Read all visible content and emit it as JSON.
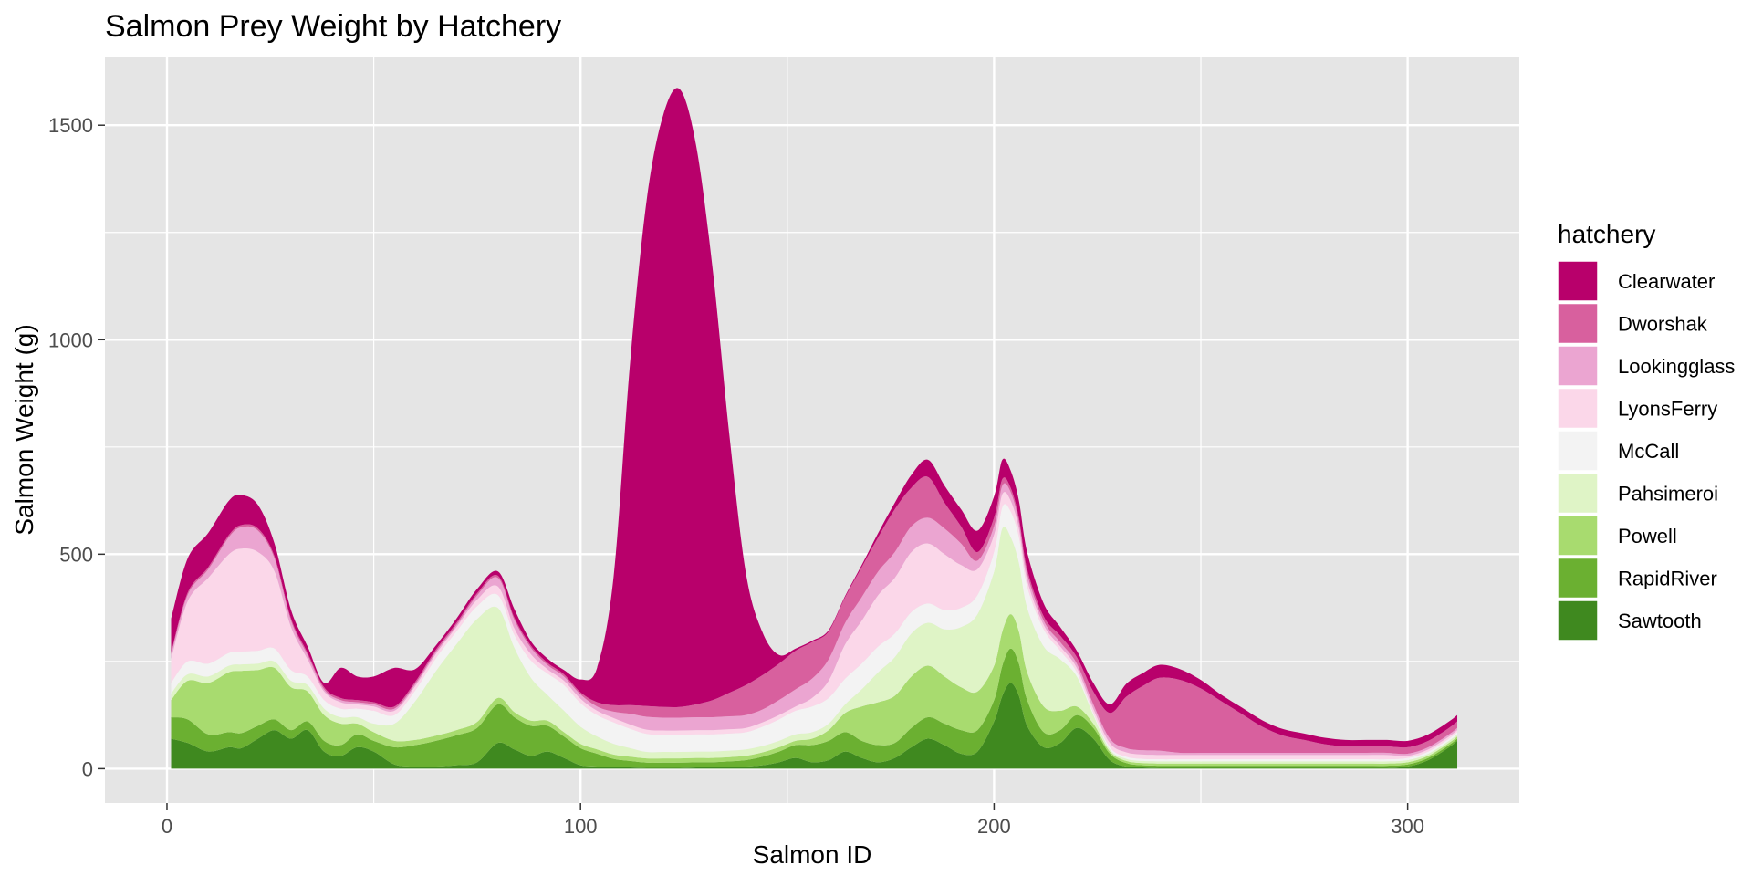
{
  "chart_data": {
    "type": "area",
    "stacked": true,
    "smoothed": true,
    "title": "Salmon Prey Weight by Hatchery",
    "xlabel": "Salmon ID",
    "ylabel": "Salmon Weight (g)",
    "xlim": [
      -15,
      327
    ],
    "ylim": [
      -80,
      1660
    ],
    "x_ticks": [
      0,
      100,
      200,
      300
    ],
    "y_ticks": [
      0,
      500,
      1000,
      1500
    ],
    "grid": true,
    "panel_background": "#e5e5e5",
    "grid_color": "#ffffff",
    "legend": {
      "title": "hatchery",
      "position": "right"
    },
    "x": [
      1,
      5,
      10,
      15,
      18,
      22,
      26,
      30,
      34,
      38,
      42,
      46,
      50,
      55,
      60,
      65,
      70,
      75,
      80,
      84,
      88,
      92,
      96,
      100,
      104,
      108,
      112,
      116,
      120,
      124,
      128,
      132,
      136,
      140,
      144,
      148,
      152,
      156,
      160,
      164,
      168,
      172,
      176,
      180,
      184,
      188,
      192,
      196,
      200,
      202,
      204,
      206,
      208,
      212,
      216,
      220,
      224,
      228,
      232,
      236,
      240,
      245,
      250,
      255,
      260,
      265,
      270,
      275,
      280,
      285,
      290,
      295,
      300,
      305,
      310,
      312
    ],
    "series": [
      {
        "name": "Sawtooth",
        "color": "#3f891f",
        "values": [
          70,
          60,
          40,
          50,
          48,
          70,
          90,
          70,
          90,
          40,
          30,
          50,
          40,
          10,
          5,
          5,
          8,
          15,
          60,
          45,
          30,
          40,
          25,
          8,
          5,
          3,
          3,
          2,
          2,
          2,
          3,
          3,
          5,
          5,
          8,
          15,
          25,
          15,
          20,
          40,
          25,
          15,
          25,
          50,
          70,
          55,
          35,
          40,
          110,
          170,
          200,
          170,
          100,
          50,
          60,
          95,
          70,
          20,
          5,
          3,
          2,
          2,
          2,
          2,
          2,
          2,
          2,
          2,
          2,
          2,
          2,
          2,
          5,
          20,
          50,
          65
        ]
      },
      {
        "name": "RapidRiver",
        "color": "#6bb031",
        "values": [
          50,
          55,
          40,
          35,
          35,
          30,
          25,
          20,
          20,
          25,
          25,
          30,
          25,
          40,
          50,
          60,
          70,
          80,
          90,
          75,
          70,
          60,
          50,
          40,
          30,
          20,
          15,
          12,
          12,
          12,
          12,
          12,
          12,
          15,
          20,
          25,
          30,
          40,
          45,
          45,
          40,
          40,
          35,
          45,
          50,
          50,
          55,
          50,
          50,
          70,
          80,
          75,
          60,
          35,
          30,
          30,
          25,
          15,
          8,
          5,
          5,
          5,
          5,
          5,
          5,
          5,
          5,
          5,
          5,
          5,
          5,
          5,
          5,
          5,
          5,
          5
        ]
      },
      {
        "name": "Powell",
        "color": "#a8db6f",
        "values": [
          40,
          90,
          120,
          140,
          145,
          130,
          120,
          100,
          70,
          60,
          50,
          25,
          20,
          15,
          12,
          12,
          12,
          14,
          15,
          12,
          12,
          12,
          10,
          10,
          10,
          10,
          10,
          10,
          10,
          10,
          10,
          10,
          10,
          10,
          10,
          10,
          10,
          15,
          25,
          45,
          80,
          100,
          110,
          120,
          120,
          110,
          100,
          90,
          80,
          80,
          80,
          75,
          65,
          60,
          45,
          20,
          10,
          5,
          5,
          5,
          5,
          5,
          5,
          5,
          5,
          5,
          5,
          5,
          5,
          5,
          5,
          5,
          5,
          5,
          5,
          5
        ]
      },
      {
        "name": "Pahsimeroi",
        "color": "#dff4c6",
        "values": [
          15,
          15,
          15,
          15,
          15,
          15,
          15,
          15,
          15,
          15,
          15,
          15,
          20,
          40,
          90,
          150,
          200,
          240,
          210,
          150,
          100,
          60,
          50,
          40,
          30,
          25,
          20,
          15,
          15,
          15,
          15,
          15,
          15,
          15,
          15,
          15,
          15,
          15,
          15,
          20,
          40,
          70,
          90,
          100,
          100,
          110,
          140,
          180,
          220,
          240,
          180,
          160,
          150,
          140,
          120,
          70,
          20,
          5,
          5,
          5,
          5,
          5,
          5,
          5,
          5,
          5,
          5,
          5,
          5,
          5,
          5,
          5,
          5,
          5,
          5,
          5
        ]
      },
      {
        "name": "McCall",
        "color": "#f3f3f3",
        "values": [
          25,
          30,
          30,
          30,
          30,
          30,
          30,
          25,
          20,
          20,
          20,
          20,
          30,
          20,
          25,
          30,
          30,
          30,
          30,
          30,
          40,
          50,
          60,
          55,
          50,
          50,
          45,
          42,
          40,
          40,
          40,
          40,
          40,
          40,
          45,
          50,
          55,
          60,
          60,
          60,
          60,
          60,
          55,
          50,
          45,
          45,
          45,
          45,
          45,
          50,
          60,
          60,
          50,
          40,
          20,
          10,
          5,
          5,
          5,
          5,
          5,
          5,
          5,
          5,
          5,
          5,
          5,
          5,
          5,
          5,
          5,
          5,
          5,
          5,
          5,
          5
        ]
      },
      {
        "name": "LyonsFerry",
        "color": "#fbd7e9",
        "values": [
          55,
          140,
          200,
          230,
          240,
          230,
          180,
          100,
          40,
          20,
          15,
          10,
          10,
          10,
          10,
          10,
          10,
          15,
          20,
          15,
          15,
          10,
          10,
          10,
          10,
          10,
          10,
          10,
          10,
          10,
          10,
          10,
          10,
          10,
          10,
          10,
          10,
          20,
          40,
          80,
          100,
          120,
          130,
          140,
          140,
          130,
          100,
          60,
          40,
          30,
          25,
          20,
          15,
          10,
          10,
          10,
          10,
          10,
          10,
          10,
          10,
          10,
          10,
          10,
          10,
          10,
          10,
          10,
          10,
          10,
          10,
          10,
          5,
          5,
          5,
          5
        ]
      },
      {
        "name": "Lookingglass",
        "color": "#eba5d1",
        "values": [
          10,
          15,
          20,
          40,
          50,
          50,
          30,
          15,
          10,
          5,
          5,
          5,
          5,
          5,
          5,
          5,
          5,
          10,
          20,
          20,
          15,
          10,
          10,
          10,
          10,
          15,
          25,
          30,
          30,
          30,
          30,
          30,
          30,
          30,
          30,
          35,
          40,
          45,
          50,
          50,
          55,
          55,
          60,
          60,
          60,
          60,
          50,
          20,
          20,
          20,
          20,
          15,
          15,
          10,
          10,
          10,
          10,
          10,
          10,
          10,
          10,
          5,
          5,
          5,
          5,
          5,
          5,
          5,
          5,
          5,
          5,
          5,
          5,
          5,
          5,
          5
        ]
      },
      {
        "name": "Dworshak",
        "color": "#d8609e",
        "values": [
          5,
          5,
          5,
          5,
          5,
          5,
          5,
          5,
          5,
          5,
          5,
          5,
          5,
          5,
          5,
          5,
          5,
          5,
          5,
          5,
          5,
          5,
          5,
          5,
          10,
          15,
          20,
          25,
          25,
          25,
          30,
          40,
          55,
          70,
          80,
          85,
          90,
          85,
          65,
          60,
          70,
          80,
          100,
          90,
          95,
          60,
          40,
          20,
          20,
          15,
          10,
          10,
          10,
          10,
          15,
          15,
          30,
          60,
          120,
          150,
          170,
          170,
          150,
          120,
          90,
          60,
          40,
          30,
          20,
          15,
          15,
          15,
          15,
          15,
          15,
          15
        ]
      },
      {
        "name": "Clearwater",
        "color": "#b8006b",
        "values": [
          80,
          80,
          80,
          80,
          70,
          55,
          30,
          20,
          15,
          10,
          70,
          55,
          60,
          90,
          30,
          10,
          10,
          10,
          10,
          20,
          10,
          10,
          10,
          30,
          80,
          300,
          800,
          1180,
          1380,
          1440,
          1300,
          1000,
          600,
          260,
          100,
          20,
          5,
          3,
          3,
          3,
          5,
          10,
          15,
          30,
          40,
          40,
          40,
          50,
          50,
          45,
          40,
          40,
          40,
          30,
          20,
          15,
          20,
          20,
          30,
          30,
          30,
          25,
          20,
          15,
          15,
          15,
          15,
          15,
          15,
          15,
          15,
          15,
          15,
          15,
          15,
          15
        ]
      }
    ]
  }
}
